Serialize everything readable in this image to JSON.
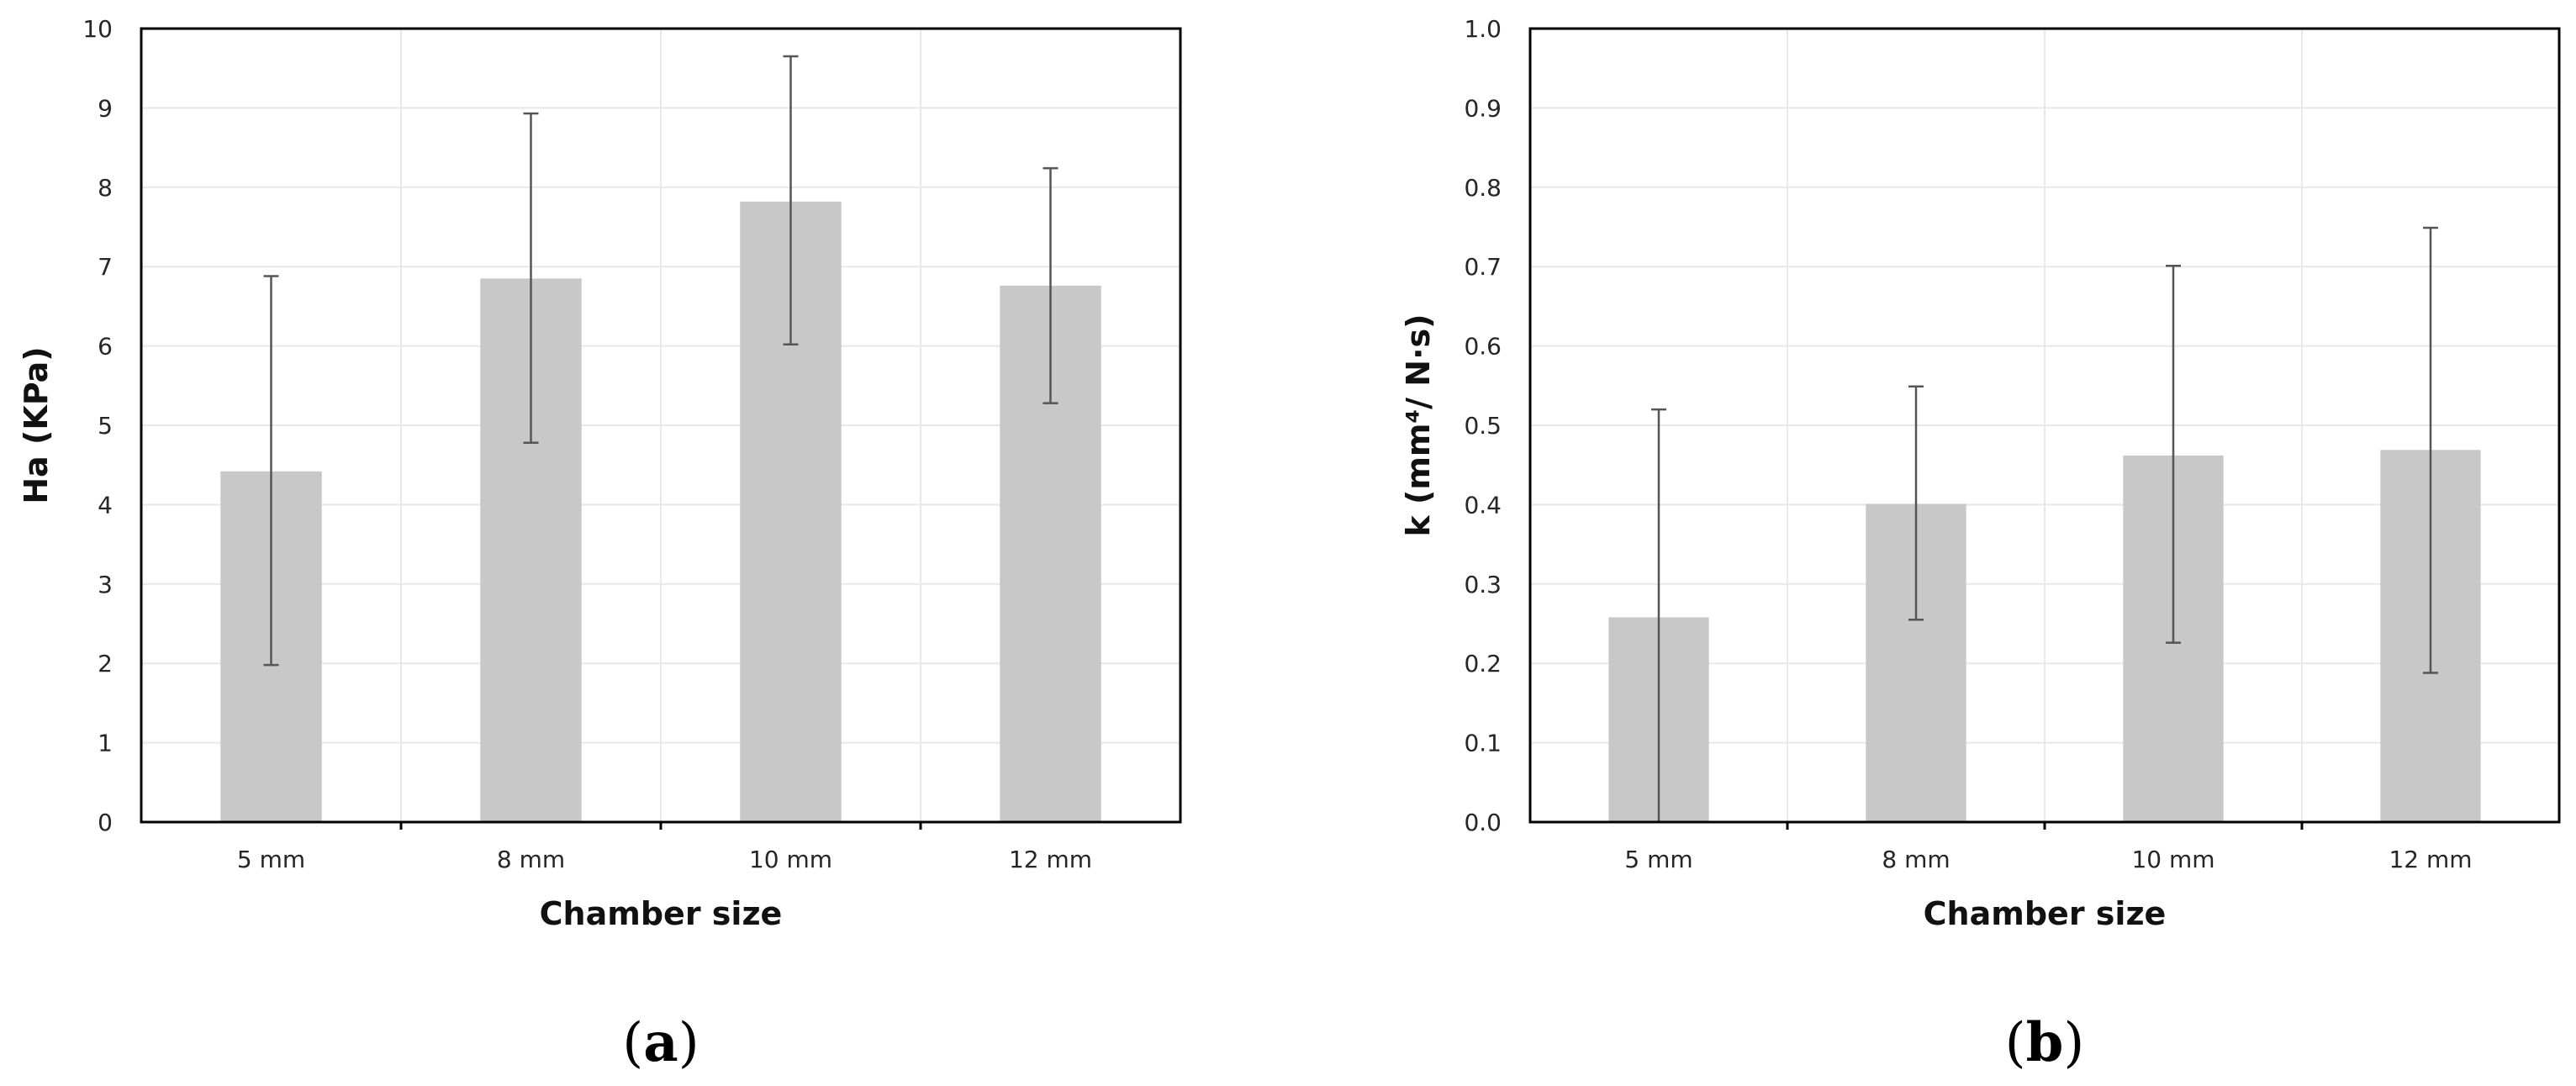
{
  "colors": {
    "bar": "#c8c8c8",
    "error_bar": "#555555",
    "grid": "#e8e8e8",
    "frame": "#000000"
  },
  "chart_data": [
    {
      "type": "bar",
      "panel_label": "(a)",
      "panel_letter": "a",
      "categories": [
        "5 mm",
        "8 mm",
        "10 mm",
        "12 mm"
      ],
      "values": [
        4.42,
        6.85,
        7.82,
        6.76
      ],
      "error_low": [
        1.98,
        4.78,
        6.02,
        5.28
      ],
      "error_high": [
        6.88,
        8.93,
        9.65,
        8.24
      ],
      "ylabel": "Ha (KPa)",
      "xlabel": "Chamber size",
      "ylim": [
        0,
        10
      ],
      "yticks": [
        "0",
        "1",
        "2",
        "3",
        "4",
        "5",
        "6",
        "7",
        "8",
        "9",
        "10"
      ],
      "grid": true
    },
    {
      "type": "bar",
      "panel_label": "(b)",
      "panel_letter": "b",
      "categories": [
        "5 mm",
        "8 mm",
        "10 mm",
        "12 mm"
      ],
      "values": [
        0.258,
        0.401,
        0.462,
        0.469
      ],
      "error_low": [
        0.0,
        0.255,
        0.226,
        0.188
      ],
      "error_high": [
        0.52,
        0.549,
        0.701,
        0.749
      ],
      "ylabel": "k (mm⁴/ N·s)",
      "xlabel": "Chamber size",
      "ylim": [
        0,
        1.0
      ],
      "yticks": [
        "0.0",
        "0.1",
        "0.2",
        "0.3",
        "0.4",
        "0.5",
        "0.6",
        "0.7",
        "0.8",
        "0.9",
        "1.0"
      ],
      "grid": true
    }
  ]
}
